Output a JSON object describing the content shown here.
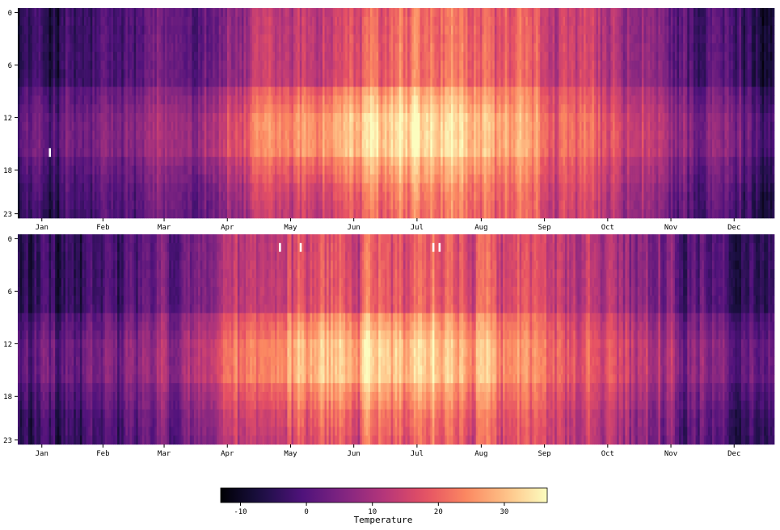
{
  "chart_data": [
    {
      "type": "heatmap",
      "title": "",
      "xlabel": "",
      "ylabel": "",
      "x": "day of year (1-365)",
      "y_ticks": [
        "0",
        "6",
        "12",
        "18",
        "23"
      ],
      "x_ticks": [
        "Jan",
        "Feb",
        "Mar",
        "Apr",
        "May",
        "Jun",
        "Jul",
        "Aug",
        "Sep",
        "Oct",
        "Nov",
        "Dec"
      ],
      "value_range": [
        -13,
        36
      ],
      "missing_cells": [
        {
          "day": 15,
          "hour": 16
        }
      ]
    },
    {
      "type": "heatmap",
      "title": "",
      "xlabel": "",
      "ylabel": "",
      "y_ticks": [
        "0",
        "6",
        "12",
        "18",
        "23"
      ],
      "x_ticks": [
        "Jan",
        "Feb",
        "Mar",
        "Apr",
        "May",
        "Jun",
        "Jul",
        "Aug",
        "Sep",
        "Oct",
        "Nov",
        "Dec"
      ],
      "value_range": [
        -13,
        36
      ],
      "missing_cells": [
        {
          "day": 126,
          "hour": 1
        },
        {
          "day": 136,
          "hour": 1
        },
        {
          "day": 200,
          "hour": 1
        },
        {
          "day": 203,
          "hour": 1
        }
      ]
    }
  ],
  "colorbar": {
    "colormap": "magma",
    "min": -13,
    "max": 36.5,
    "ticks": [
      "-10",
      "0",
      "10",
      "20",
      "30"
    ],
    "label": "Temperature"
  }
}
